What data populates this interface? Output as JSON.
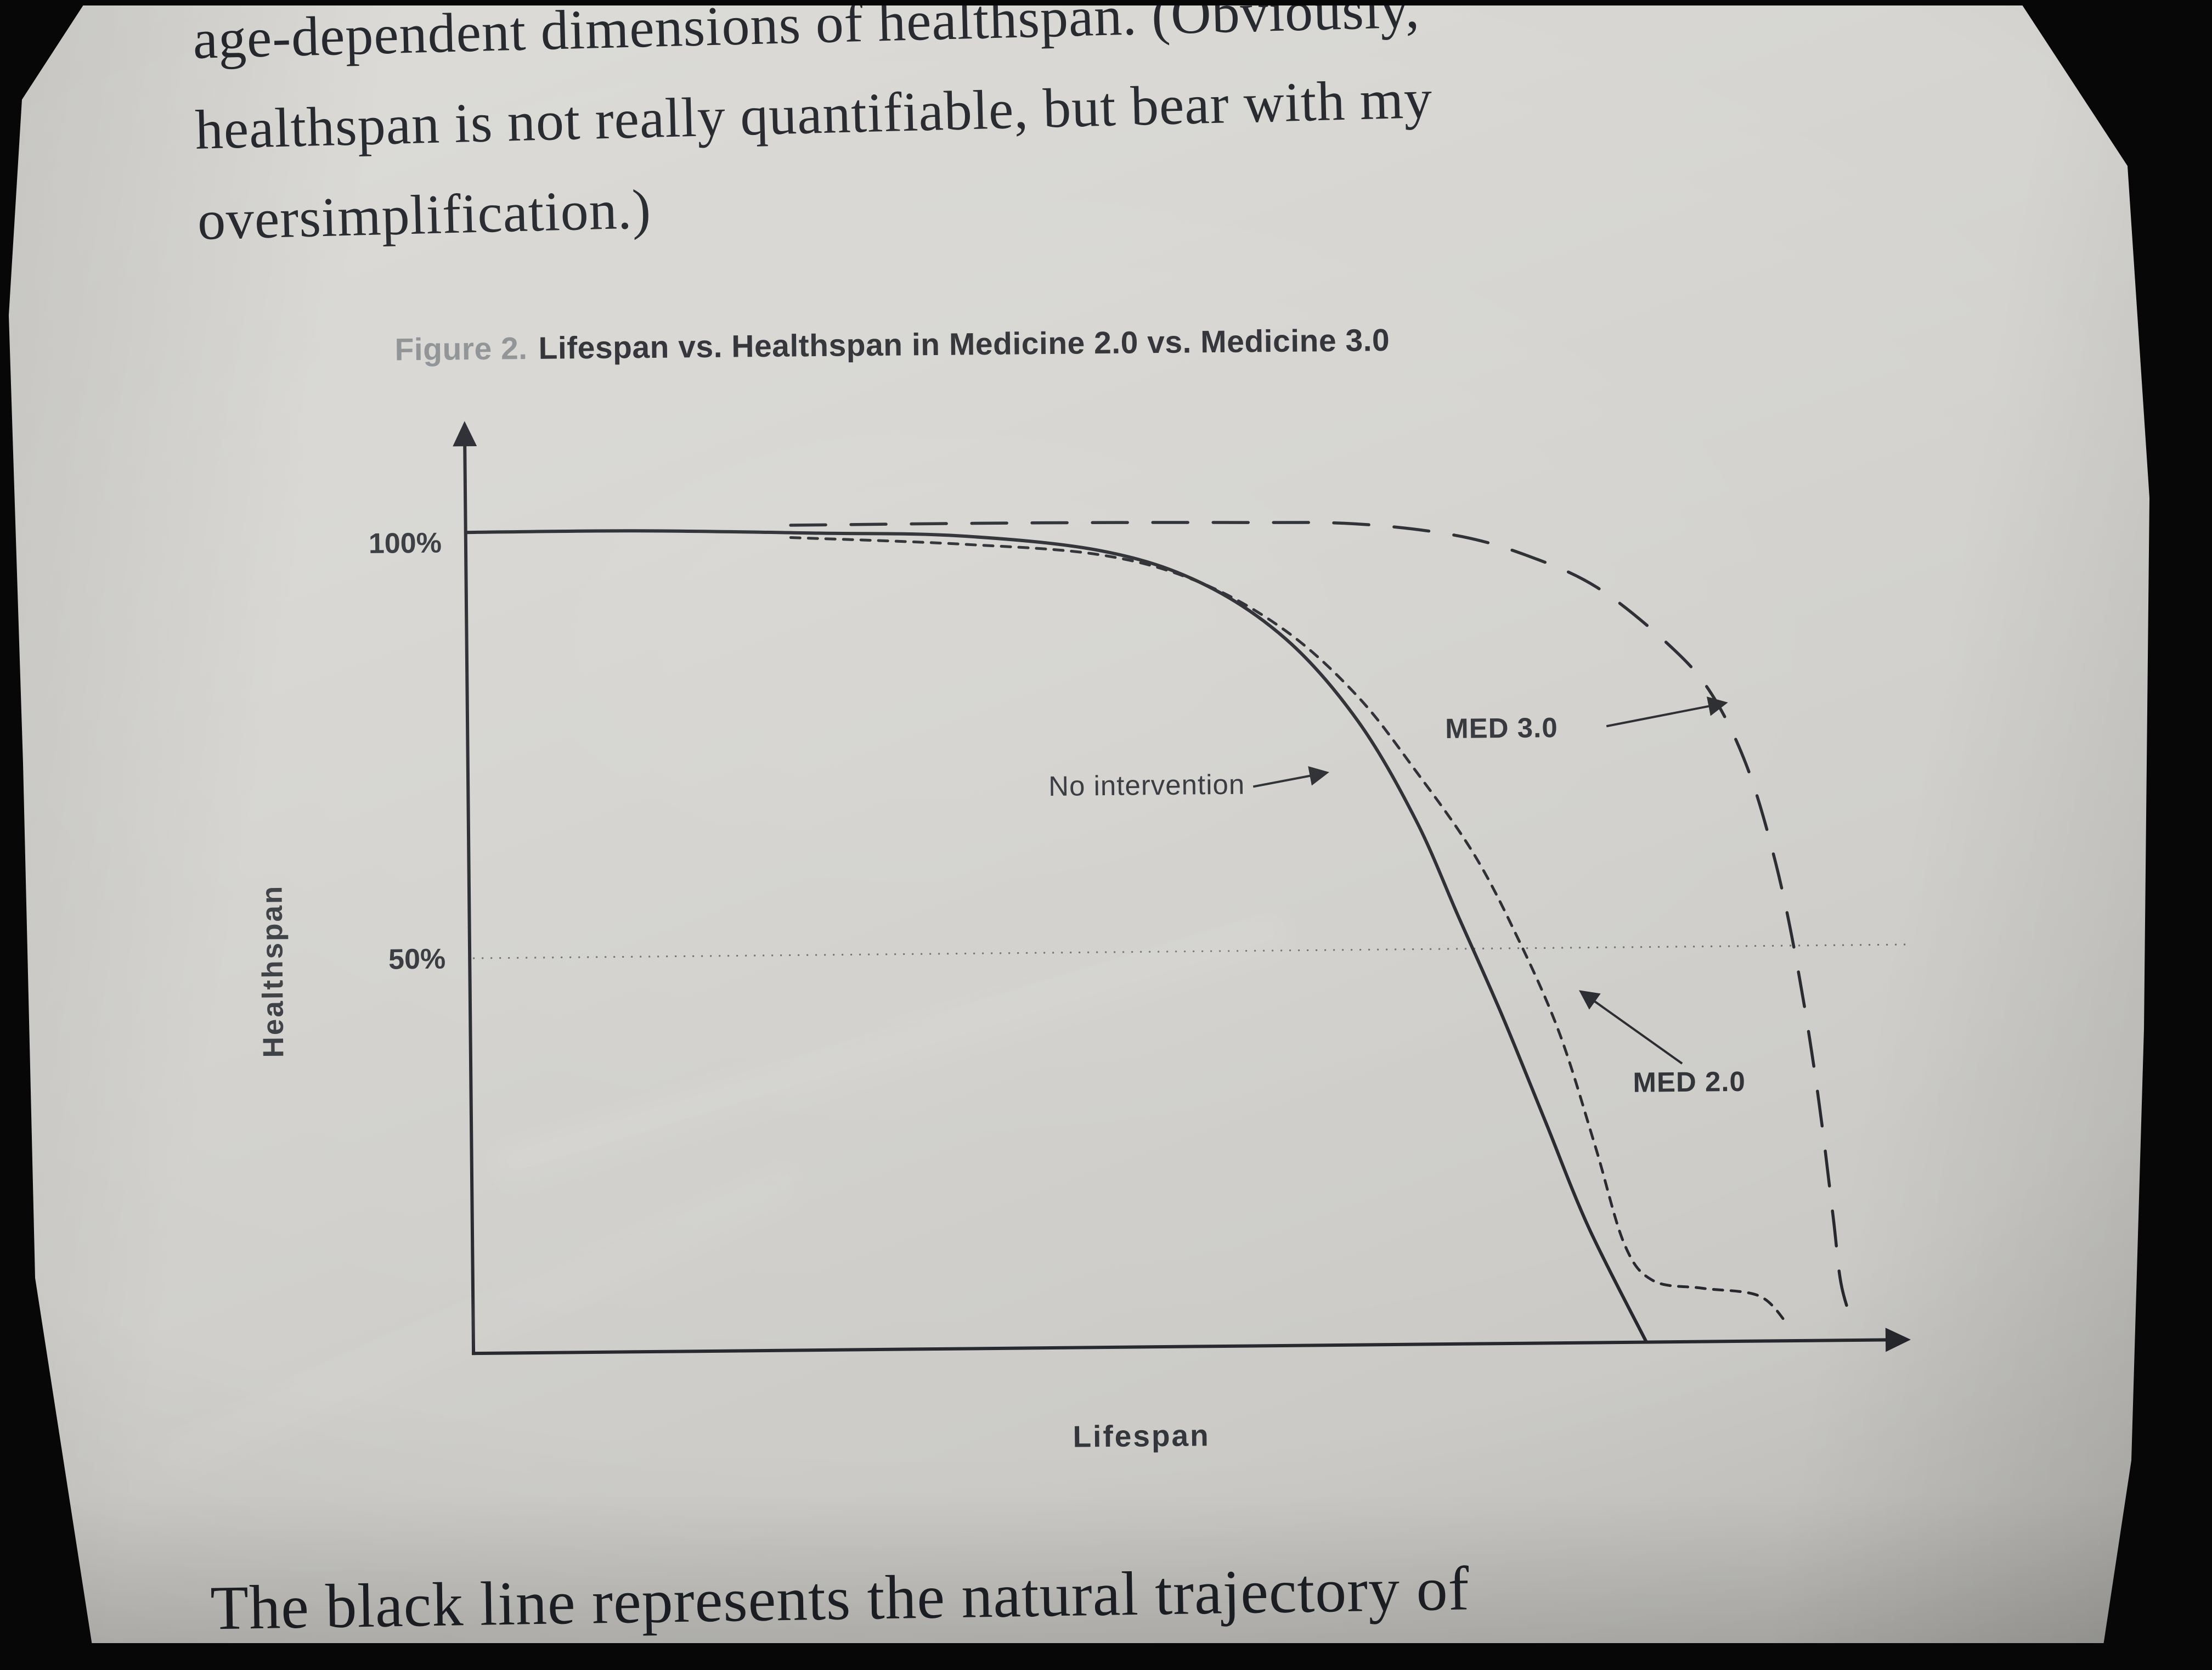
{
  "page": {
    "top_paragraph_lines": [
      "age-dependent dimensions of healthspan. (Obviously,",
      "healthspan is not really quantifiable, but bear with my",
      "oversimplification.)"
    ],
    "bottom_paragraph": "The black line represents the natural trajectory of"
  },
  "figure": {
    "caption_label": "Figure 2.",
    "caption_title": "Lifespan vs. Healthspan in Medicine 2.0 vs. Medicine 3.0"
  },
  "chart_data": {
    "type": "line",
    "title": "Lifespan vs. Healthspan in Medicine 2.0 vs. Medicine 3.0",
    "xlabel": "Lifespan",
    "ylabel": "Healthspan",
    "y_tick_labels": [
      "100%",
      "50%"
    ],
    "ylim": [
      0,
      100
    ],
    "x_axis_note": "unlabeled relative lifespan, arrow at right end",
    "gridline": {
      "value": 50,
      "style": "dotted horizontal line"
    },
    "ink_color": "#26282d",
    "legend_position": "inline annotations with arrows",
    "series": [
      {
        "name": "No intervention",
        "line_style": "solid",
        "points": [
          [
            0,
            100
          ],
          [
            12,
            100
          ],
          [
            25,
            99.5
          ],
          [
            35,
            99
          ],
          [
            45,
            97
          ],
          [
            52,
            93
          ],
          [
            58,
            86
          ],
          [
            63,
            76
          ],
          [
            67,
            64
          ],
          [
            70,
            52
          ],
          [
            73,
            40
          ],
          [
            76,
            27
          ],
          [
            79,
            14
          ],
          [
            83,
            0
          ]
        ]
      },
      {
        "name": "MED 2.0",
        "line_style": "short-dash",
        "points": [
          [
            23,
            99
          ],
          [
            35,
            98
          ],
          [
            45,
            96.5
          ],
          [
            52,
            93
          ],
          [
            58,
            87
          ],
          [
            63,
            79
          ],
          [
            67,
            70
          ],
          [
            71,
            60
          ],
          [
            74,
            50
          ],
          [
            77,
            38
          ],
          [
            79.5,
            24
          ],
          [
            81.5,
            12
          ],
          [
            83.5,
            7.5
          ],
          [
            87,
            6.5
          ],
          [
            91,
            5.5
          ],
          [
            93,
            2
          ]
        ]
      },
      {
        "name": "MED 3.0",
        "line_style": "long-dash",
        "points": [
          [
            23,
            100.5
          ],
          [
            40,
            100.5
          ],
          [
            55,
            100.3
          ],
          [
            63,
            100
          ],
          [
            70,
            98.5
          ],
          [
            75,
            96
          ],
          [
            80,
            92
          ],
          [
            85,
            85
          ],
          [
            88,
            79
          ],
          [
            90.5,
            70
          ],
          [
            92.5,
            58
          ],
          [
            94,
            45
          ],
          [
            95.3,
            30
          ],
          [
            96.3,
            15
          ],
          [
            96.8,
            7
          ],
          [
            97.6,
            2
          ]
        ]
      }
    ],
    "annotations": [
      {
        "label": "No intervention",
        "target_series": "No intervention",
        "arrow_direction": "right"
      },
      {
        "label": "MED 3.0",
        "target_series": "MED 3.0",
        "arrow_direction": "right"
      },
      {
        "label": "MED 2.0",
        "target_series": "MED 2.0",
        "arrow_direction": "up-left"
      }
    ]
  }
}
